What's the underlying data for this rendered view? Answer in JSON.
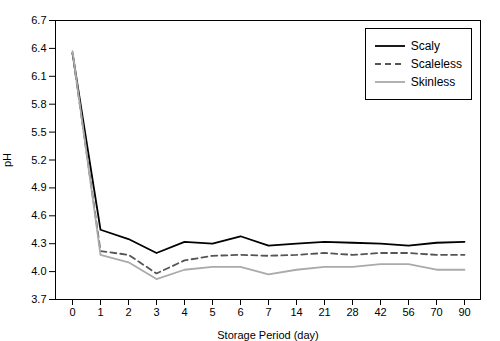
{
  "chart_data": {
    "type": "line",
    "categories": [
      "0",
      "1",
      "2",
      "3",
      "4",
      "5",
      "6",
      "7",
      "14",
      "21",
      "28",
      "42",
      "56",
      "70",
      "90"
    ],
    "series": [
      {
        "name": "Scaly",
        "color": "#000000",
        "line_style": "solid",
        "values": [
          6.35,
          4.45,
          4.35,
          4.2,
          4.32,
          4.3,
          4.38,
          4.28,
          4.3,
          4.32,
          4.31,
          4.3,
          4.28,
          4.31,
          4.32
        ]
      },
      {
        "name": "Scaleless",
        "color": "#555555",
        "line_style": "dashed",
        "values": [
          6.35,
          4.22,
          4.18,
          3.98,
          4.12,
          4.17,
          4.18,
          4.17,
          4.18,
          4.2,
          4.18,
          4.2,
          4.2,
          4.18,
          4.18
        ]
      },
      {
        "name": "Skinless",
        "color": "#aaaaaa",
        "line_style": "solid",
        "values": [
          6.37,
          4.18,
          4.1,
          3.92,
          4.02,
          4.05,
          4.05,
          3.97,
          4.02,
          4.05,
          4.05,
          4.08,
          4.08,
          4.02,
          4.02
        ]
      }
    ],
    "xlabel": "Storage Period (day)",
    "ylabel": "pH",
    "ylim": [
      3.7,
      6.7
    ],
    "yticks": [
      3.7,
      {
        "value": 4.0,
        "label": "4.0"
      },
      4.3,
      4.6,
      4.9,
      5.2,
      5.5,
      5.8,
      6.1,
      6.4,
      6.7
    ],
    "grid": false,
    "legend": "upper right"
  }
}
